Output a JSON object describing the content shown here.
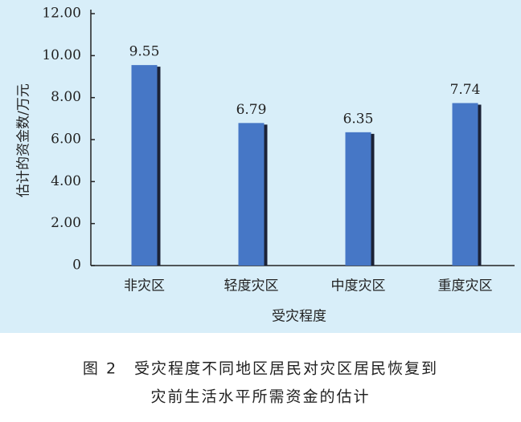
{
  "chart_data": {
    "type": "bar",
    "y_label": "估计的资金数/万元",
    "x_label": "受灾程度",
    "categories": [
      "非灾区",
      "轻度灾区",
      "中度灾区",
      "重度灾区"
    ],
    "values": [
      9.55,
      6.79,
      6.35,
      7.74
    ],
    "color": "#4677c6",
    "ylim": [
      0,
      12
    ],
    "yticks": [
      0,
      {
        "value": 2,
        "label": "2.00"
      },
      {
        "value": 4,
        "label": "4.00"
      },
      {
        "value": 6,
        "label": "6.00"
      },
      {
        "value": 8,
        "label": "8.00"
      },
      {
        "value": 10,
        "label": "10.00"
      },
      {
        "value": 12,
        "label": "12.00"
      }
    ],
    "caption": [
      "图 2　受灾程度不同地区居民对灾区居民恢复到",
      "灾前生活水平所需资金的估计"
    ]
  }
}
